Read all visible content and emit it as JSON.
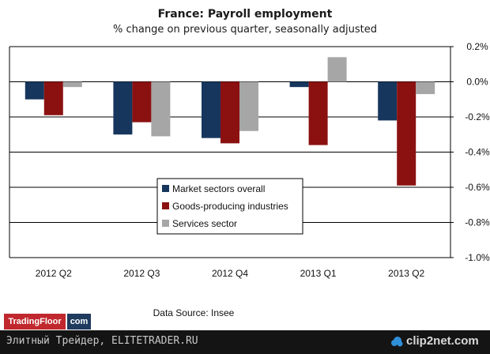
{
  "chart_data": {
    "type": "bar",
    "title": "France: Payroll employment",
    "subtitle": "% change on previous quarter, seasonally adjusted",
    "categories": [
      "2012 Q2",
      "2012 Q3",
      "2012 Q4",
      "2013 Q1",
      "2013 Q2"
    ],
    "series": [
      {
        "name": "Market sectors overall",
        "color": "#17365d",
        "values": [
          -0.1,
          -0.3,
          -0.32,
          -0.03,
          -0.22
        ]
      },
      {
        "name": "Goods-producing industries",
        "color": "#8b1111",
        "values": [
          -0.19,
          -0.23,
          -0.35,
          -0.36,
          -0.59
        ]
      },
      {
        "name": "Services sector",
        "color": "#a6a6a6",
        "values": [
          -0.03,
          -0.31,
          -0.28,
          0.14,
          -0.07
        ]
      }
    ],
    "ylim": [
      -1.0,
      0.2
    ],
    "yticks": [
      0.2,
      0.0,
      -0.2,
      -0.4,
      -0.6,
      -0.8,
      -1.0
    ],
    "ytick_labels": [
      "0.2%",
      "0.0%",
      "-0.2%",
      "-0.4%",
      "-0.6%",
      "-0.8%",
      "-1.0%"
    ],
    "xlabel": "",
    "ylabel": "",
    "grid": true,
    "legend_position": "center"
  },
  "source_text": "Data Source: Insee",
  "logo": {
    "main": "TradingFloor",
    "suffix": "com"
  },
  "footer": {
    "text": "Элитный Трейдер, ELITETRADER.RU",
    "brand": "clip2net.com"
  }
}
